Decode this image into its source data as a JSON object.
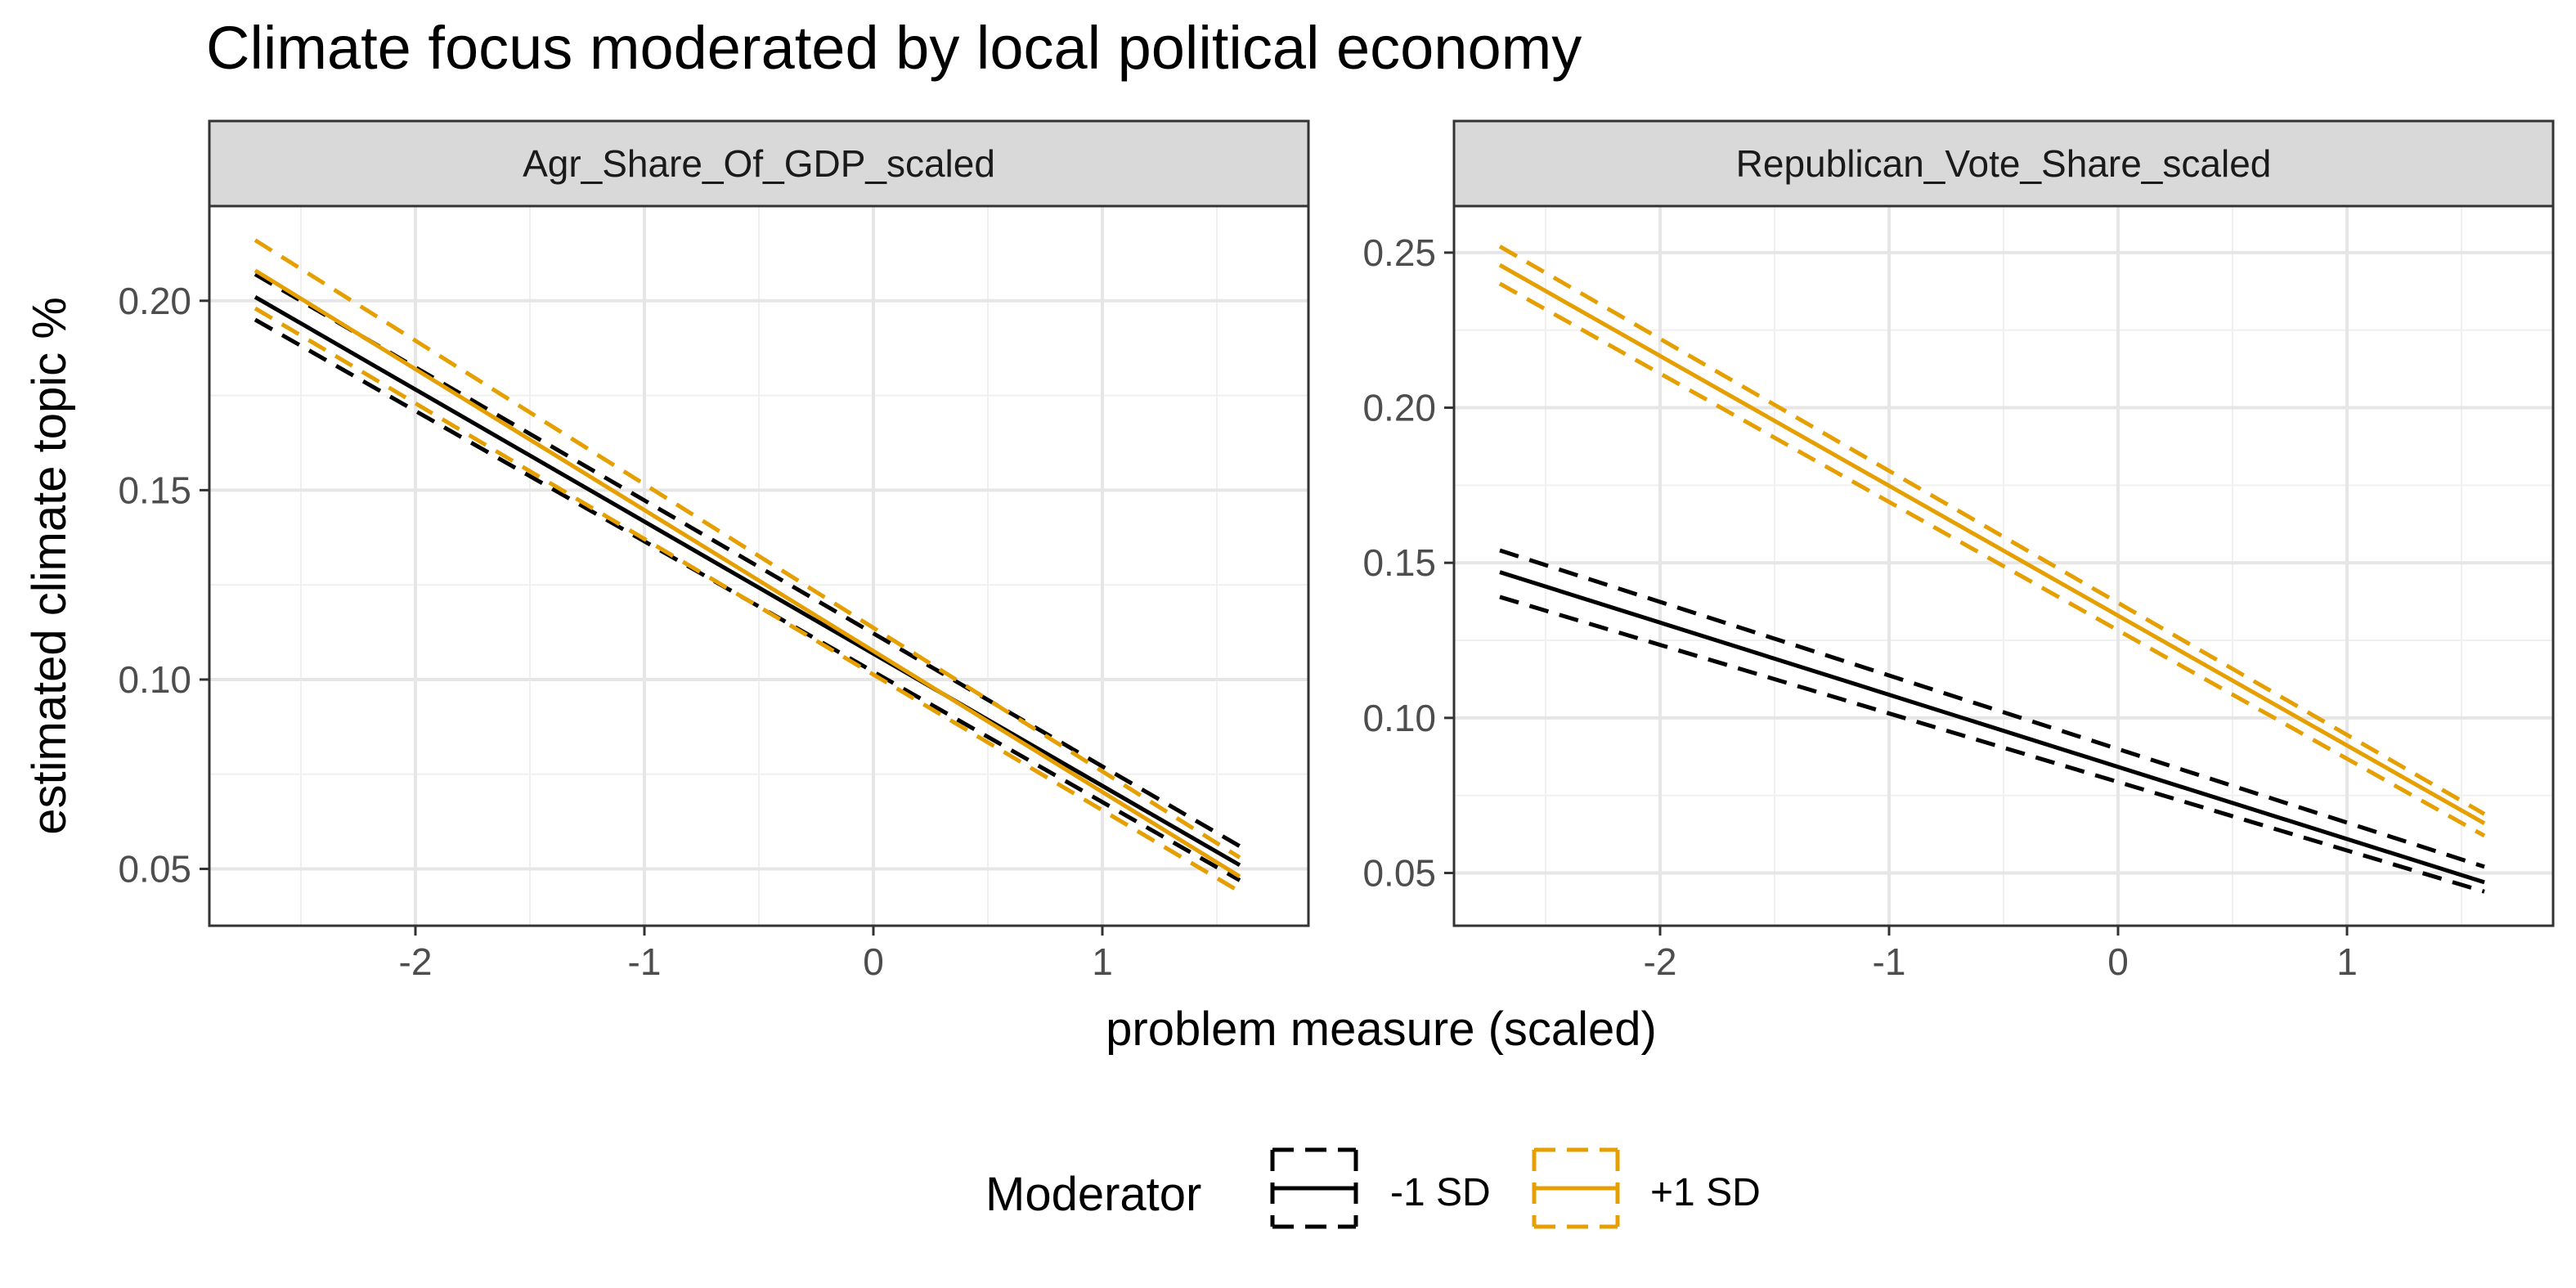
{
  "chart_data": {
    "type": "line",
    "title": "Climate focus moderated by local political economy",
    "xlabel": "problem measure (scaled)",
    "ylabel": "estimated climate topic %",
    "grid": true,
    "legend": {
      "title": "Moderator",
      "position": "bottom",
      "entries": [
        {
          "label": "-1 SD",
          "color": "#000000"
        },
        {
          "label": "+1 SD",
          "color": "#E69F00"
        }
      ]
    },
    "facets": [
      {
        "strip": "Agr_Share_Of_GDP_scaled",
        "xlim": [
          -2.9,
          1.9
        ],
        "ylim": [
          0.035,
          0.225
        ],
        "xticks": [
          -2,
          -1,
          0,
          1
        ],
        "yticks": [
          0.05,
          0.1,
          0.15,
          0.2
        ],
        "ytick_labels": [
          "0.05",
          "0.10",
          "0.15",
          "0.20"
        ],
        "series": [
          {
            "name": "-1 SD",
            "x": [
              -2.7,
              1.6
            ],
            "fit": [
              0.201,
              0.051
            ],
            "lower": [
              0.195,
              0.047
            ],
            "upper": [
              0.207,
              0.056
            ]
          },
          {
            "name": "+1 SD",
            "x": [
              -2.7,
              1.6
            ],
            "fit": [
              0.208,
              0.048
            ],
            "lower": [
              0.198,
              0.044
            ],
            "upper": [
              0.216,
              0.053
            ]
          }
        ]
      },
      {
        "strip": "Republican_Vote_Share_scaled",
        "xlim": [
          -2.9,
          1.9
        ],
        "ylim": [
          0.033,
          0.265
        ],
        "xticks": [
          -2,
          -1,
          0,
          1
        ],
        "yticks": [
          0.05,
          0.1,
          0.15,
          0.2,
          0.25
        ],
        "ytick_labels": [
          "0.05",
          "0.10",
          "0.15",
          "0.20",
          "0.25"
        ],
        "series": [
          {
            "name": "-1 SD",
            "x": [
              -2.7,
              1.6
            ],
            "fit": [
              0.147,
              0.047
            ],
            "lower": [
              0.139,
              0.044
            ],
            "upper": [
              0.154,
              0.052
            ]
          },
          {
            "name": "+1 SD",
            "x": [
              -2.7,
              1.6
            ],
            "fit": [
              0.246,
              0.066
            ],
            "lower": [
              0.24,
              0.062
            ],
            "upper": [
              0.252,
              0.069
            ]
          }
        ]
      }
    ]
  }
}
